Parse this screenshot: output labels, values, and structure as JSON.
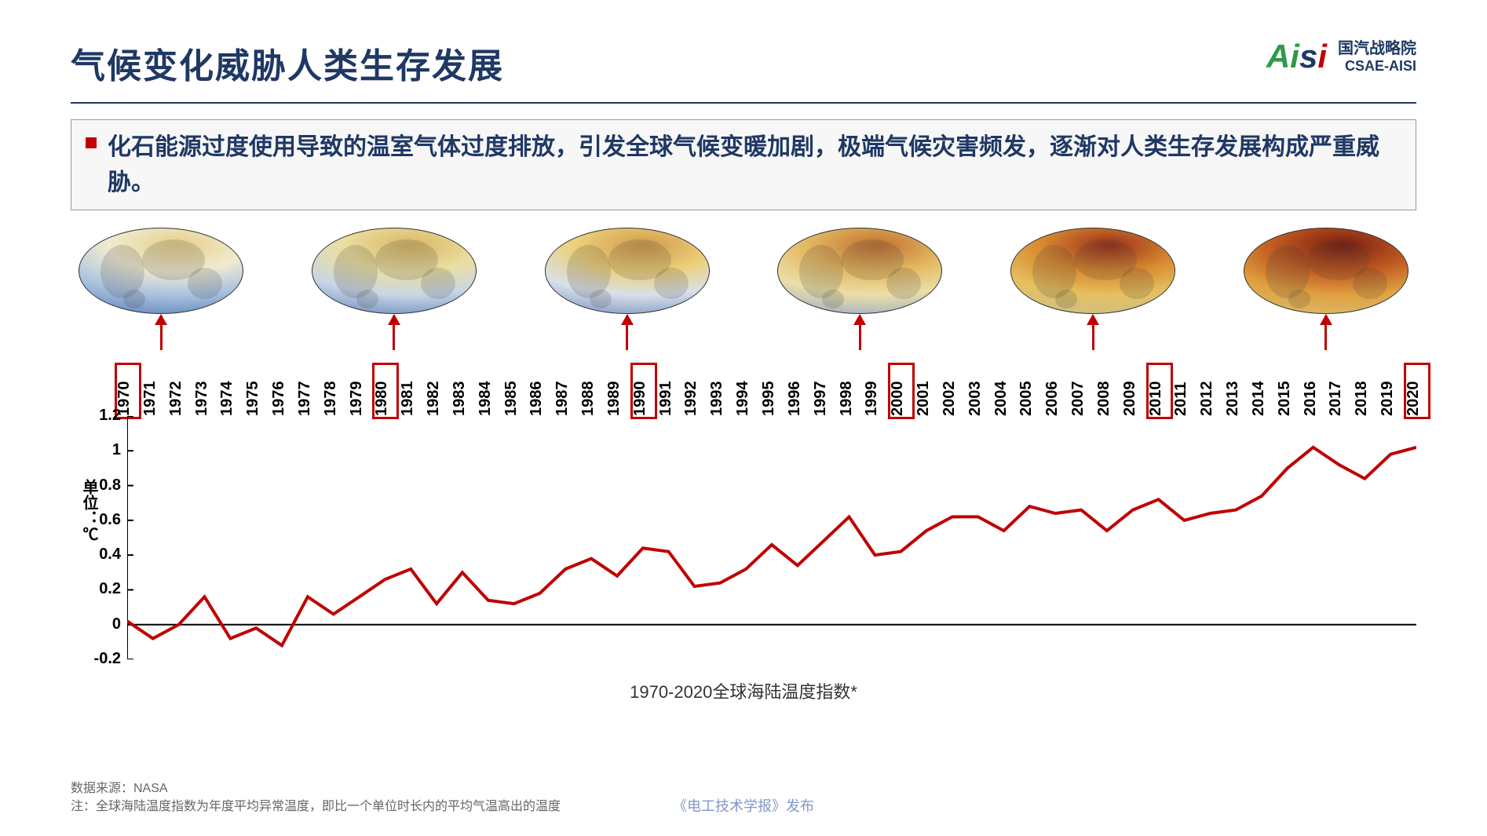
{
  "title": "气候变化威胁人类生存发展",
  "logo": {
    "brand": "Aisi",
    "cn": "国汽战略院",
    "en": "CSAE-AISI",
    "colors": {
      "A": "#2d9b47",
      "i1": "#2d9b47",
      "s": "#1f3864",
      "i2": "#c00000"
    }
  },
  "lead": "化石能源过度使用导致的温室气体过度排放，引发全球气候变暖加剧，极端气候灾害频发，逐渐对人类生存发展构成严重威胁。",
  "maps": {
    "marker_years": [
      1970,
      1980,
      1990,
      2000,
      2010,
      2020
    ],
    "gradients": [
      [
        "#5b7fb8",
        "#a9c3e0",
        "#f0ead0",
        "#e6d088"
      ],
      [
        "#6a88bc",
        "#c8d6e6",
        "#eadfa0",
        "#d8b664"
      ],
      [
        "#7890c0",
        "#d9e0ea",
        "#ecd07a",
        "#d09a4a"
      ],
      [
        "#97a8c8",
        "#eadfa8",
        "#e4b860",
        "#c07030"
      ],
      [
        "#c8c090",
        "#e6c060",
        "#d88a30",
        "#9a2e1a"
      ],
      [
        "#d8c070",
        "#e0a040",
        "#c05a20",
        "#7a1c10"
      ]
    ],
    "marker_color": "#c00000",
    "border_color": "#333333"
  },
  "chart": {
    "type": "line",
    "caption": "1970-2020全球海陆温度指数*",
    "y_axis_title": "单位：℃",
    "line_color": "#c00000",
    "line_width": 4,
    "background_color": "#ffffff",
    "axis_color": "#000000",
    "xlim": [
      1970,
      2020
    ],
    "ylim": [
      -0.2,
      1.2
    ],
    "ytick_step": 0.2,
    "y_ticks": [
      "-0.2",
      "0",
      "0.2",
      "0.4",
      "0.6",
      "0.8",
      "1",
      "1.2"
    ],
    "x_ticks": [
      1970,
      1971,
      1972,
      1973,
      1974,
      1975,
      1976,
      1977,
      1978,
      1979,
      1980,
      1981,
      1982,
      1983,
      1984,
      1985,
      1986,
      1987,
      1988,
      1989,
      1990,
      1991,
      1992,
      1993,
      1994,
      1995,
      1996,
      1997,
      1998,
      1999,
      2000,
      2001,
      2002,
      2003,
      2004,
      2005,
      2006,
      2007,
      2008,
      2009,
      2010,
      2011,
      2012,
      2013,
      2014,
      2015,
      2016,
      2017,
      2018,
      2019,
      2020
    ],
    "highlight_years": [
      1970,
      1980,
      1990,
      2000,
      2010,
      2020
    ],
    "values": [
      0.02,
      -0.08,
      0.0,
      0.16,
      -0.08,
      -0.02,
      -0.12,
      0.16,
      0.06,
      0.16,
      0.26,
      0.32,
      0.12,
      0.3,
      0.14,
      0.12,
      0.18,
      0.32,
      0.38,
      0.28,
      0.44,
      0.42,
      0.22,
      0.24,
      0.32,
      0.46,
      0.34,
      0.48,
      0.62,
      0.4,
      0.42,
      0.54,
      0.62,
      0.62,
      0.54,
      0.68,
      0.64,
      0.66,
      0.54,
      0.66,
      0.72,
      0.6,
      0.64,
      0.66,
      0.74,
      0.9,
      1.02,
      0.92,
      0.84,
      0.98,
      1.02
    ],
    "label_fontsize": 20,
    "label_fontweight": 700
  },
  "footer": {
    "source": "数据来源：NASA",
    "note": "注：全球海陆温度指数为年度平均异常温度，即比一个单位时长内的平均气温高出的温度",
    "publisher": "《电工技术学报》发布"
  }
}
